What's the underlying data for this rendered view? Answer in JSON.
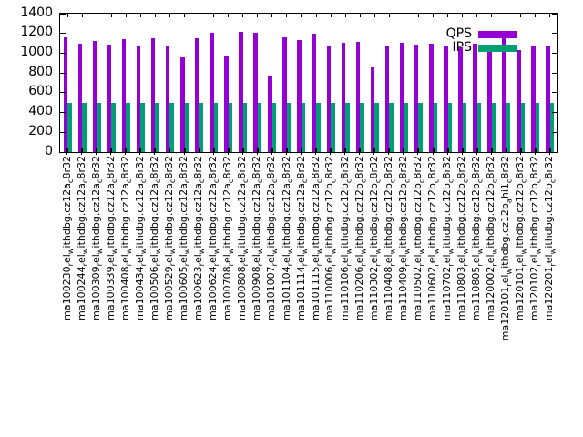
{
  "chart_data": {
    "type": "bar",
    "title": "",
    "xlabel": "",
    "ylabel": "",
    "ylim": [
      0,
      1400
    ],
    "yticks": [
      0,
      200,
      400,
      600,
      800,
      1000,
      1200,
      1400
    ],
    "grid": false,
    "legend_position": "top-right",
    "categories": [
      "ma100230_rel_withdbg.cz12a_c8r32",
      "ma100244_rel_withdbg.cz12a_c8r32",
      "ma100309_rel_withdbg.cz12a_c8r32",
      "ma100339_rel_withdbg.cz12a_c8r32",
      "ma100408_rel_withdbg.cz12a_c8r32",
      "ma100434_rel_withdbg.cz12a_c8r32",
      "ma100506_rel_withdbg.cz12a_c8r32",
      "ma100529_rel_withdbg.cz12a_c8r32",
      "ma100605_rel_withdbg.cz12a_c8r32",
      "ma100623_rel_withdbg.cz12a_c8r32",
      "ma100624_rel_withdbg.cz12a_c8r32",
      "ma100708_rel_withdbg.cz12a_c8r32",
      "ma100808_rel_withdbg.cz12a_c8r32",
      "ma100908_rel_withdbg.cz12a_c8r32",
      "ma101007_rel_withdbg.cz12a_c8r32",
      "ma101104_rel_withdbg.cz12a_c8r32",
      "ma101114_rel_withdbg.cz12a_c8r32",
      "ma101115_rel_withdbg.cz12a_c8r32",
      "ma110006_rel_withdbg.cz12b_c8r32",
      "ma110106_rel_withdbg.cz12b_c8r32",
      "ma110206_rel_withdbg.cz12b_c8r32",
      "ma110302_rel_withdbg.cz12b_c8r32",
      "ma110408_rel_withdbg.cz12b_c8r32",
      "ma110409_rel_withdbg.cz12b_c8r32",
      "ma110502_rel_withdbg.cz12b_c8r32",
      "ma110602_rel_withdbg.cz12b_c8r32",
      "ma110702_rel_withdbg.cz12b_c8r32",
      "ma110803_rel_withdbg.cz12b_c8r32",
      "ma110805_rel_withdbg.cz12b_c8r32",
      "ma120002_rel_withdbg.cz12b_c8r32",
      "ma120101_rel_withdbg.cz12b_ahi1_c8r32",
      "ma120101_rel_withdbg.cz12b_c8r32",
      "ma120102_rel_withdbg.cz12b_c8r32",
      "ma120201_rel_withdbg.cz12b_c8r32"
    ],
    "series": [
      {
        "name": "QPS",
        "color": "#9400d3",
        "values": [
          1160,
          1100,
          1120,
          1090,
          1140,
          1065,
          1155,
          1065,
          955,
          1155,
          1205,
          965,
          1220,
          1210,
          770,
          1165,
          1135,
          1200,
          1065,
          1105,
          1115,
          855,
          1065,
          1105,
          1085,
          1095,
          1065,
          1060,
          1100,
          1065,
          1160,
          1035,
          1070,
          1075
        ]
      },
      {
        "name": "IPS",
        "color": "#009e73",
        "values": [
          495,
          495,
          495,
          495,
          495,
          495,
          495,
          495,
          495,
          495,
          495,
          495,
          495,
          495,
          495,
          495,
          495,
          495,
          495,
          495,
          495,
          495,
          495,
          495,
          495,
          495,
          495,
          495,
          495,
          495,
          495,
          495,
          495,
          495
        ]
      }
    ]
  }
}
